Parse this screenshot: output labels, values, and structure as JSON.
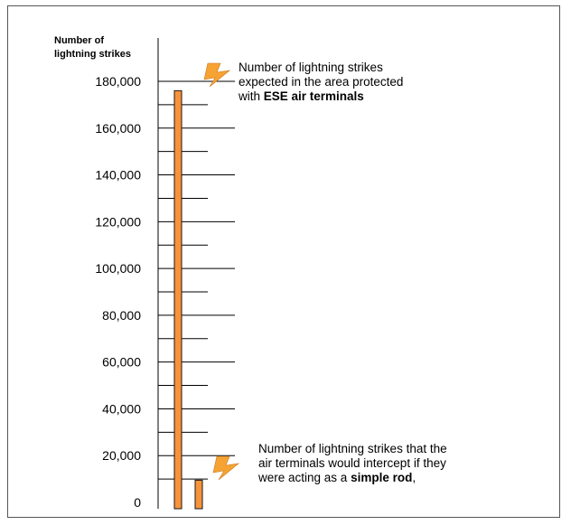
{
  "chart_data": {
    "type": "bar",
    "ylabel": "Number of lightning strikes",
    "ylim": [
      0,
      180000
    ],
    "y_ticks": [
      "0",
      "20,000",
      "40,000",
      "60,000",
      "80,000",
      "100,000",
      "120,000",
      "140,000",
      "160,000",
      "180,000"
    ],
    "values": [
      176000,
      9500
    ],
    "colors": {
      "bar": "#f7933a",
      "bar_edge": "#1a1a1a",
      "bolt": "#f7a333"
    },
    "grid": true,
    "annotations": [
      {
        "lines": [
          "Number of lightning strikes",
          "expected in the area protected"
        ],
        "last_prefix": "with ",
        "last_bold": "ESE air terminals",
        "last_suffix": ""
      },
      {
        "lines": [
          "Number of lightning strikes that the",
          "air terminals would intercept if they"
        ],
        "last_prefix": "were acting as a ",
        "last_bold": "simple rod",
        "last_suffix": ","
      }
    ],
    "icons": [
      "lightning-bolt-icon",
      "lightning-bolt-icon"
    ]
  }
}
